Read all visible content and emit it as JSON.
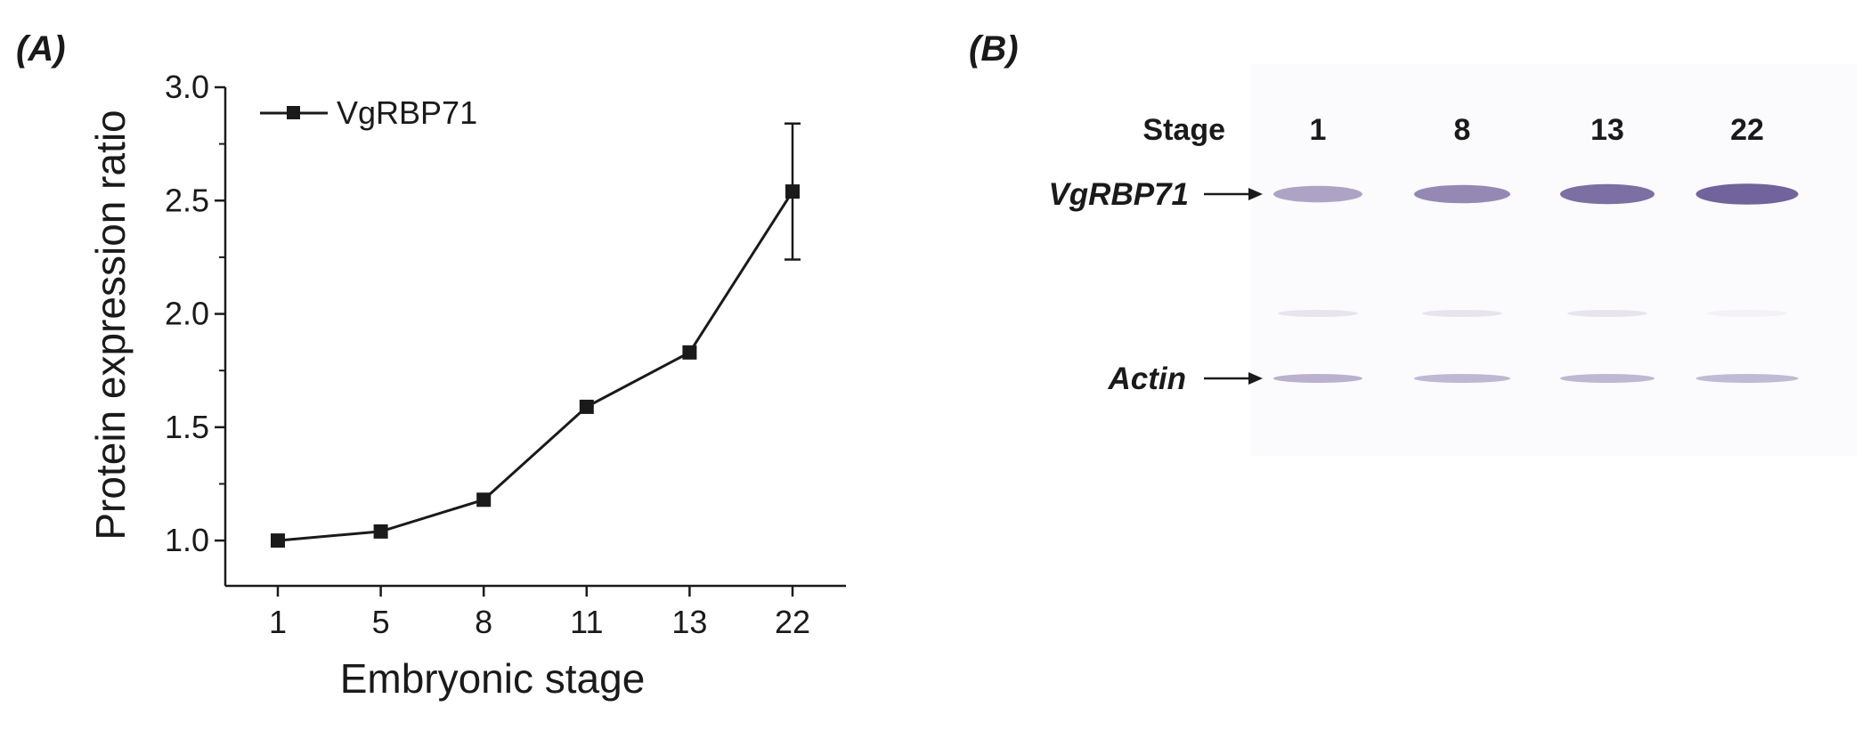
{
  "panels": {
    "a_label": "(A)",
    "b_label": "(B)"
  },
  "chart_data": {
    "type": "line",
    "categories": [
      "1",
      "5",
      "8",
      "11",
      "13",
      "22"
    ],
    "series": [
      {
        "name": "VgRBP71",
        "values": [
          1.0,
          1.04,
          1.18,
          1.59,
          1.83,
          2.54
        ],
        "error": [
          0,
          0,
          0,
          0,
          0,
          0.3
        ],
        "marker": "square",
        "color": "#1a1a1a"
      }
    ],
    "xlabel": "Embryonic stage",
    "ylabel": "Protein expression ratio",
    "ylim": [
      0.8,
      3.0
    ],
    "yticks": [
      "1.0",
      "1.5",
      "2.0",
      "2.5",
      "3.0"
    ],
    "legend": "top-left",
    "grid": false
  },
  "blot": {
    "stage_header": "Stage",
    "lanes": [
      "1",
      "8",
      "13",
      "22"
    ],
    "rows": [
      {
        "name": "VgRBP71",
        "intensity": [
          0.45,
          0.65,
          0.85,
          0.95
        ]
      },
      {
        "name": "Actin",
        "intensity": [
          0.35,
          0.3,
          0.3,
          0.28
        ]
      }
    ],
    "band_color": "#5a4a8c"
  }
}
